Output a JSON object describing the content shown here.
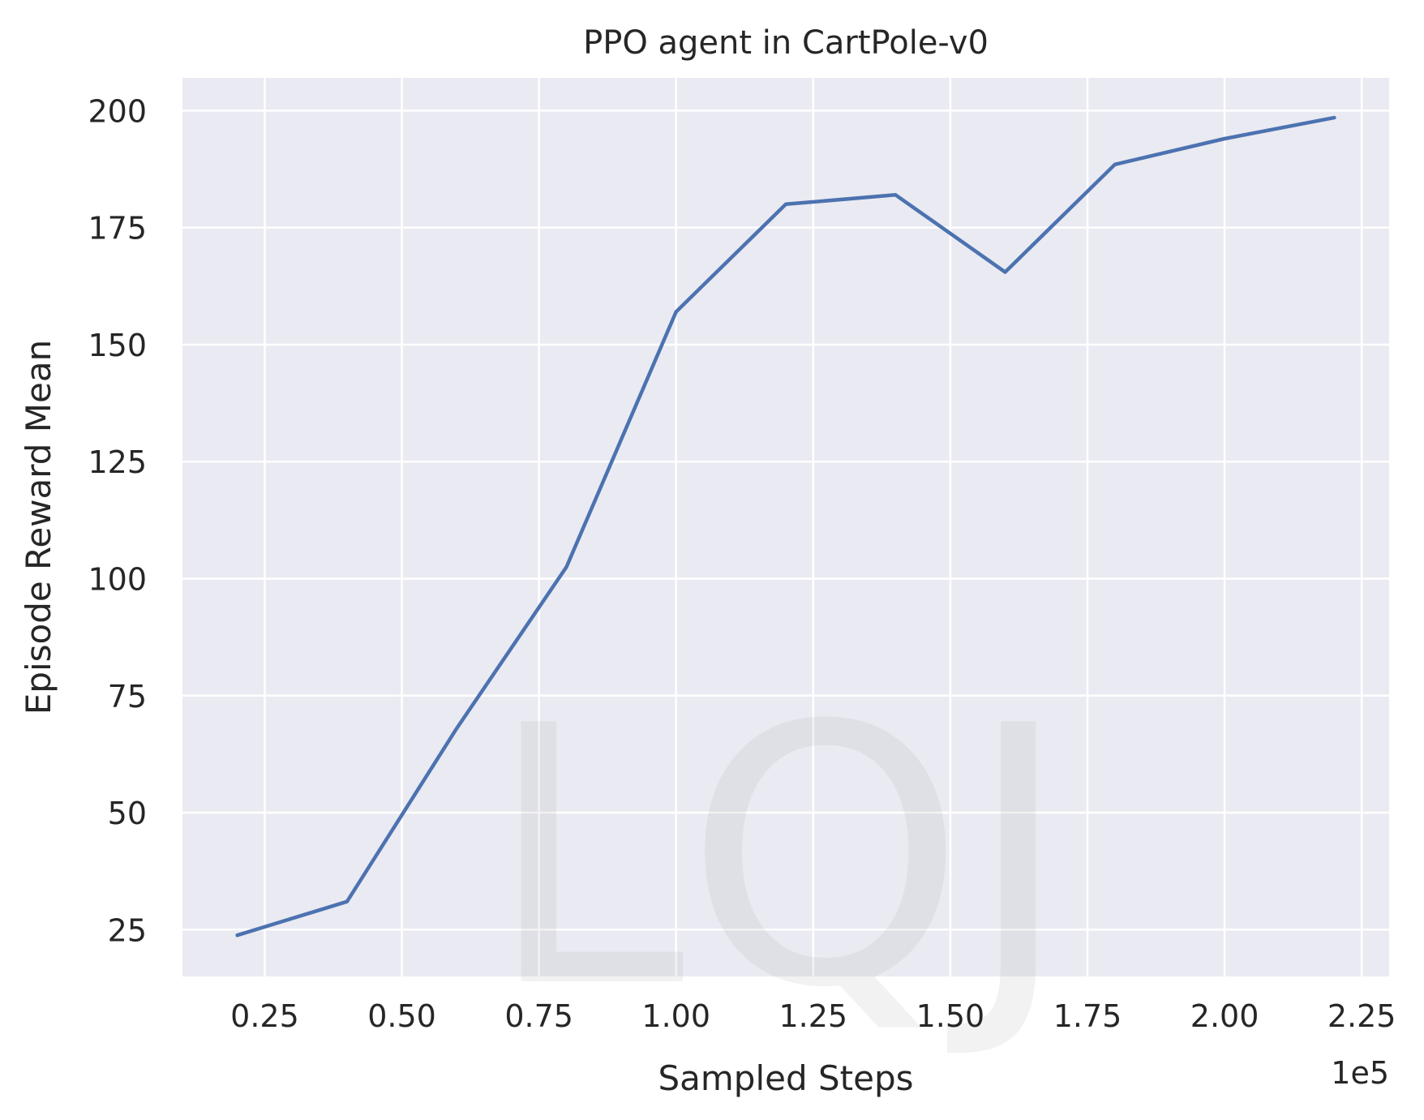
{
  "chart_data": {
    "type": "line",
    "title": "PPO agent in CartPole-v0",
    "xlabel": "Sampled Steps",
    "ylabel": "Episode Reward Mean",
    "x_offset_text": "1e5",
    "xlim": [
      0.1,
      2.3
    ],
    "ylim": [
      15,
      207
    ],
    "xticks": [
      0.25,
      0.5,
      0.75,
      1.0,
      1.25,
      1.5,
      1.75,
      2.0,
      2.25
    ],
    "xtick_labels": [
      "0.25",
      "0.50",
      "0.75",
      "1.00",
      "1.25",
      "1.50",
      "1.75",
      "2.00",
      "2.25"
    ],
    "yticks": [
      25,
      50,
      75,
      100,
      125,
      150,
      175,
      200
    ],
    "ytick_labels": [
      "25",
      "50",
      "75",
      "100",
      "125",
      "150",
      "175",
      "200"
    ],
    "grid": true,
    "background": "#eaeaf2",
    "series": [
      {
        "color": "#4c72b0",
        "x": [
          0.2,
          0.4,
          0.6,
          0.8,
          1.0,
          1.2,
          1.4,
          1.6,
          1.8,
          2.0,
          2.2
        ],
        "y": [
          23.8,
          31.0,
          68.0,
          102.5,
          157.0,
          180.0,
          182.0,
          165.5,
          188.5,
          194.0,
          198.5
        ]
      }
    ]
  },
  "watermark": {
    "text": "LQJ"
  }
}
